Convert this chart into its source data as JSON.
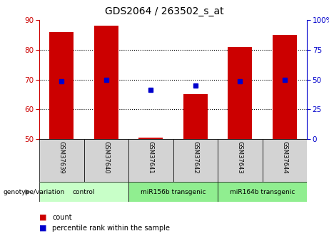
{
  "title": "GDS2064 / 263502_s_at",
  "samples": [
    "GSM37639",
    "GSM37640",
    "GSM37641",
    "GSM37642",
    "GSM37643",
    "GSM37644"
  ],
  "count_values": [
    86,
    88,
    50.5,
    65,
    81,
    85
  ],
  "percentile_values": [
    69.5,
    70.0,
    66.5,
    68.0,
    69.5,
    70.0
  ],
  "ylim_left": [
    50,
    90
  ],
  "ylim_right": [
    0,
    100
  ],
  "yticks_left": [
    50,
    60,
    70,
    80,
    90
  ],
  "yticks_right": [
    0,
    25,
    50,
    75,
    100
  ],
  "ytick_labels_right": [
    "0",
    "25",
    "50",
    "75",
    "100%"
  ],
  "bar_color": "#cc0000",
  "dot_color": "#0000cc",
  "bar_width": 0.55,
  "left_tick_color": "#cc0000",
  "right_tick_color": "#0000cc",
  "sample_box_color": "#d3d3d3",
  "control_color": "#c8ffc8",
  "transgenic_color": "#90ee90",
  "genotype_label": "genotype/variation",
  "count_label": "count",
  "percentile_label": "percentile rank within the sample",
  "group_spans": [
    [
      0,
      1,
      "control"
    ],
    [
      2,
      3,
      "miR156b transgenic"
    ],
    [
      4,
      5,
      "miR164b transgenic"
    ]
  ]
}
